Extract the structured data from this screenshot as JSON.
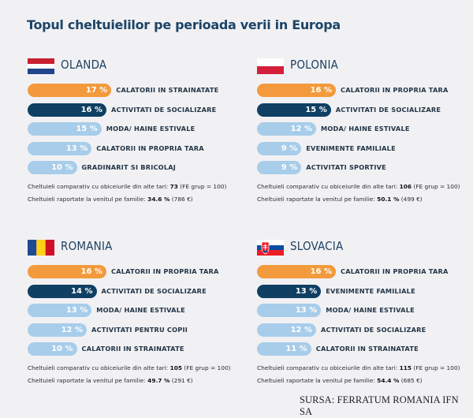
{
  "title": "Topul cheltuielilor pe perioada verii in Europa",
  "source": "SURSA: FERRATUM ROMANIA IFN SA",
  "colors": {
    "top1": "#f39a3c",
    "top2": "#0f3f62",
    "other": "#a7cdea",
    "title": "#1c4466"
  },
  "chart_data": [
    {
      "type": "bar",
      "orientation": "horizontal",
      "title": "OLANDA",
      "flag": "netherlands-flag",
      "categories": [
        "CALATORII IN STRAINATATE",
        "ACTIVITATI DE SOCIALIZARE",
        "MODA/ HAINE ESTIVALE",
        "CALATORII IN PROPRIA TARA",
        "GRADINARIT SI BRICOLAJ"
      ],
      "values": [
        17,
        16,
        15,
        13,
        10
      ],
      "labels": [
        "17 %",
        "16 %",
        "15 %",
        "13 %",
        "10 %"
      ],
      "unit": "%",
      "notes": {
        "compare_prefix": "Cheltuieli comparativ cu obiceiurile din alte tari: ",
        "compare_value": "73",
        "compare_suffix": " (FE grup = 100)",
        "income_prefix": "Cheltuieli raportate la venitul pe familie: ",
        "income_value": "34.6 %",
        "income_suffix": " (786 €)"
      }
    },
    {
      "type": "bar",
      "orientation": "horizontal",
      "title": "POLONIA",
      "flag": "poland-flag",
      "categories": [
        "CALATORII IN PROPRIA TARA",
        "ACTIVITATI DE SOCIALIZARE",
        "MODA/ HAINE ESTIVALE",
        "EVENIMENTE FAMILIALE",
        "ACTIVITATI SPORTIVE"
      ],
      "values": [
        16,
        15,
        12,
        9,
        9
      ],
      "labels": [
        "16 %",
        "15 %",
        "12 %",
        "9 %",
        "9 %"
      ],
      "unit": "%",
      "notes": {
        "compare_prefix": "Cheltuieli comparativ cu obiceiurile din alte tari: ",
        "compare_value": "106",
        "compare_suffix": " (FE grup = 100)",
        "income_prefix": "Cheltuieli raportate la venitul pe familie: ",
        "income_value": "50.1 %",
        "income_suffix": " (499 €)"
      }
    },
    {
      "type": "bar",
      "orientation": "horizontal",
      "title": "ROMANIA",
      "flag": "romania-flag",
      "categories": [
        "CALATORII IN PROPRIA TARA",
        "ACTIVITATI DE SOCIALIZARE",
        "MODA/ HAINE ESTIVALE",
        "ACTIVITATI PENTRU COPII",
        "CALATORII IN STRAINATATE"
      ],
      "values": [
        16,
        14,
        13,
        12,
        10
      ],
      "labels": [
        "16 %",
        "14 %",
        "13 %",
        "12 %",
        "10 %"
      ],
      "unit": "%",
      "notes": {
        "compare_prefix": "Cheltuieli comparativ cu obiceiurile din alte tari: ",
        "compare_value": "105",
        "compare_suffix": " (FE grup = 100)",
        "income_prefix": "Cheltuieli raportate la venitul pe familie: ",
        "income_value": "49.7 %",
        "income_suffix": " (291 €)"
      }
    },
    {
      "type": "bar",
      "orientation": "horizontal",
      "title": "SLOVACIA",
      "flag": "slovakia-flag",
      "categories": [
        "CALATORII IN PROPRIA TARA",
        "EVENIMENTE FAMILIALE",
        "MODA/ HAINE ESTIVALE",
        "ACTIVITATI DE SOCIALIZARE",
        "CALATORII IN STRAINATATE"
      ],
      "values": [
        16,
        13,
        13,
        12,
        11
      ],
      "labels": [
        "16 %",
        "13 %",
        "13 %",
        "12 %",
        "11 %"
      ],
      "unit": "%",
      "notes": {
        "compare_prefix": "Cheltuieli comparativ cu obiceiurile din alte tari: ",
        "compare_value": "115",
        "compare_suffix": " (FE grup = 100)",
        "income_prefix": "Cheltuieli raportate la venitul pe familie: ",
        "income_value": "54.4 %",
        "income_suffix": " (685 €)"
      }
    }
  ]
}
